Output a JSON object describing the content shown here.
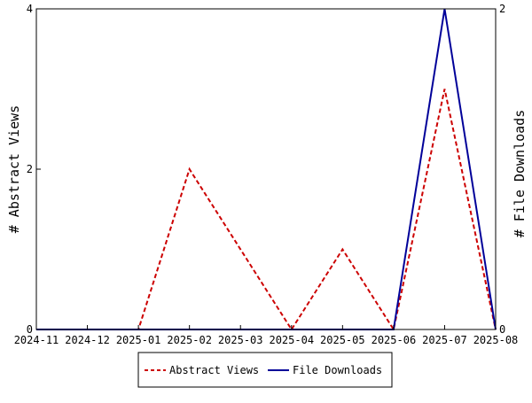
{
  "chart_data": {
    "type": "line",
    "categories": [
      "2024-11",
      "2024-12",
      "2025-01",
      "2025-02",
      "2025-03",
      "2025-04",
      "2025-05",
      "2025-06",
      "2025-07",
      "2025-08"
    ],
    "x_tick_labels": [
      "2024-11",
      "2024-12",
      "2025-01",
      "2025-02",
      "2025-03",
      "2025-04",
      "2025-05",
      "2025-06",
      "2025-07",
      "2025-08"
    ],
    "left_axis": {
      "label": "# Abstract Views",
      "ylim": [
        0,
        4
      ],
      "ticks": [
        0,
        2,
        4
      ],
      "tick_labels": [
        "0",
        "2",
        "4"
      ]
    },
    "right_axis": {
      "label": "# File Downloads",
      "ylim": [
        0,
        2
      ],
      "ticks": [
        0,
        2
      ],
      "tick_labels": [
        "0",
        "2"
      ]
    },
    "series": [
      {
        "name": "Abstract Views",
        "axis": "left",
        "values": [
          0,
          0,
          0,
          2,
          1,
          0,
          1,
          0,
          3,
          0
        ],
        "color": "#cc0000",
        "style": "dashed"
      },
      {
        "name": "File Downloads",
        "axis": "right",
        "values": [
          0,
          0,
          0,
          0,
          0,
          0,
          0,
          0,
          2,
          0
        ],
        "color": "#000099",
        "style": "solid"
      }
    ],
    "legend_position": "bottom-center",
    "grid": false
  }
}
